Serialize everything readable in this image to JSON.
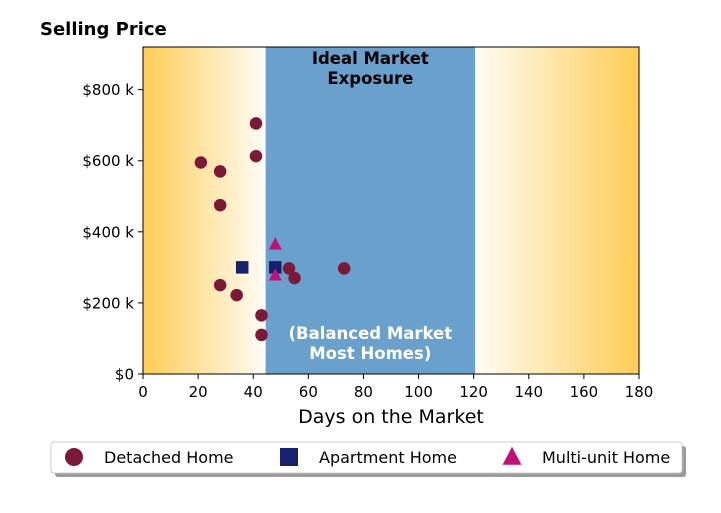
{
  "chart_data": {
    "type": "scatter",
    "title": "Selling Price",
    "xlabel": "Days on the Market",
    "ylabel": "",
    "xlim": [
      0,
      180
    ],
    "ylim": [
      0,
      920000
    ],
    "x_ticks": [
      0,
      20,
      40,
      60,
      80,
      100,
      120,
      140,
      160,
      180
    ],
    "y_ticks": [
      {
        "value": 0,
        "label": "$0"
      },
      {
        "value": 200000,
        "label": "$200 k"
      },
      {
        "value": 400000,
        "label": "$400 k"
      },
      {
        "value": 600000,
        "label": "$600 k"
      },
      {
        "value": 800000,
        "label": "$800 k"
      }
    ],
    "grid": false,
    "legend_position": "bottom",
    "background_gradient_colors": [
      "#ffcc55",
      "#fffdf6"
    ],
    "highlight_band": {
      "x_range": [
        44.5,
        120.5
      ],
      "color": "#6aa0cc",
      "label_top": [
        "Ideal Market",
        "Exposure"
      ],
      "label_bottom": [
        "(Balanced Market",
        "Most Homes)"
      ]
    },
    "series": [
      {
        "name": "Detached Home",
        "marker": "circle",
        "color": "#7a1a38",
        "points": [
          {
            "x": 41,
            "y": 705000
          },
          {
            "x": 41,
            "y": 613000
          },
          {
            "x": 21,
            "y": 595000
          },
          {
            "x": 28,
            "y": 570000
          },
          {
            "x": 28,
            "y": 475000
          },
          {
            "x": 53,
            "y": 297000
          },
          {
            "x": 55,
            "y": 270000
          },
          {
            "x": 73,
            "y": 297000
          },
          {
            "x": 28,
            "y": 250000
          },
          {
            "x": 34,
            "y": 222000
          },
          {
            "x": 43,
            "y": 165000
          },
          {
            "x": 43,
            "y": 110000
          }
        ]
      },
      {
        "name": "Apartment Home",
        "marker": "square",
        "color": "#17216b",
        "points": [
          {
            "x": 36,
            "y": 300000
          },
          {
            "x": 48,
            "y": 300000
          }
        ]
      },
      {
        "name": "Multi-unit Home",
        "marker": "triangle",
        "color": "#c0107a",
        "points": [
          {
            "x": 48,
            "y": 365000
          },
          {
            "x": 48,
            "y": 278000
          }
        ]
      }
    ]
  }
}
